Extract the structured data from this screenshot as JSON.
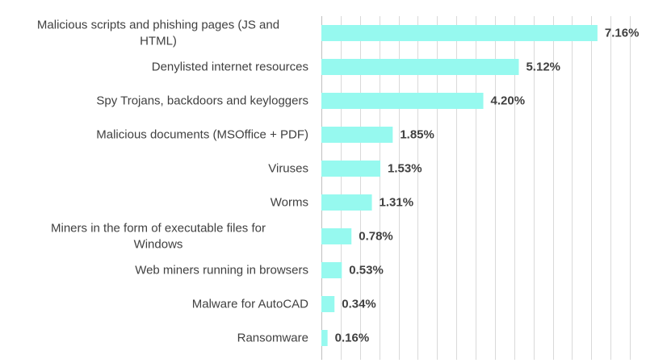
{
  "chart_data": {
    "type": "bar",
    "orientation": "horizontal",
    "categories": [
      [
        "Malicious scripts and phishing pages (JS and",
        "HTML)"
      ],
      [
        "Denylisted internet resources"
      ],
      [
        "Spy Trojans, backdoors and keyloggers"
      ],
      [
        "Malicious documents (MSOffice + PDF)"
      ],
      [
        "Viruses"
      ],
      [
        "Worms"
      ],
      [
        "Miners in the form of executable files for",
        "Windows"
      ],
      [
        "Web miners running in browsers"
      ],
      [
        "Malware for AutoCAD"
      ],
      [
        "Ransomware"
      ]
    ],
    "values": [
      7.16,
      5.12,
      4.2,
      1.85,
      1.53,
      1.31,
      0.78,
      0.53,
      0.34,
      0.16
    ],
    "value_labels": [
      "7.16%",
      "5.12%",
      "4.20%",
      "1.85%",
      "1.53%",
      "1.31%",
      "0.78%",
      "0.53%",
      "0.34%",
      "0.16%"
    ],
    "title": "",
    "xlabel": "",
    "ylabel": "",
    "xlim": [
      0,
      8
    ],
    "grid_step": 0.5,
    "grid": true,
    "legend": false,
    "bar_color": "#96f9ef",
    "text_color": "#404040",
    "grid_color": "#d9d9d9"
  }
}
